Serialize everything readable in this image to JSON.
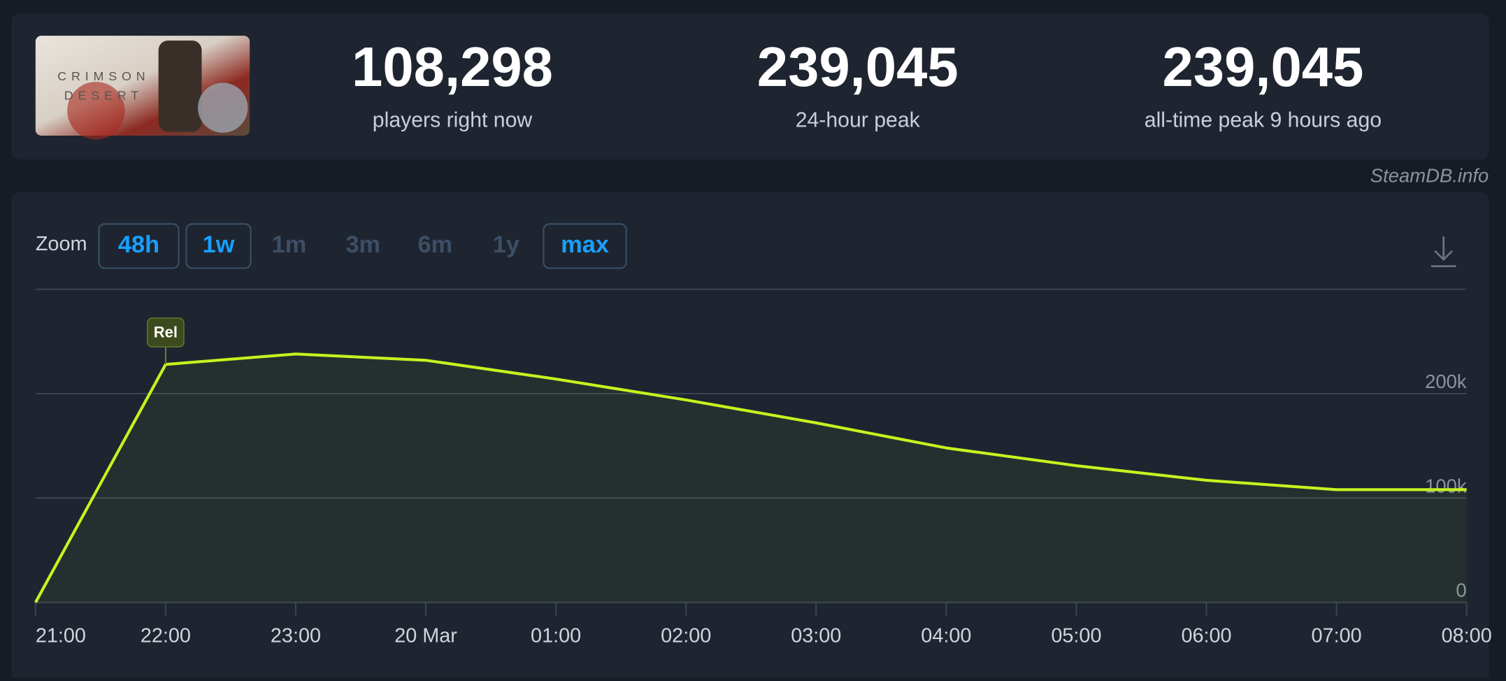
{
  "thumbnail": {
    "logo": [
      "CRIMSON",
      "DESERT"
    ]
  },
  "stats": [
    {
      "value": "108,298",
      "label": "players right now"
    },
    {
      "value": "239,045",
      "label": "24-hour peak"
    },
    {
      "value": "239,045",
      "label": "all-time peak 9 hours ago"
    }
  ],
  "watermark": "SteamDB.info",
  "zoom": {
    "label": "Zoom",
    "buttons": [
      {
        "label": "48h",
        "enabled": true
      },
      {
        "label": "1w",
        "enabled": true
      },
      {
        "label": "1m",
        "enabled": false
      },
      {
        "label": "3m",
        "enabled": false
      },
      {
        "label": "6m",
        "enabled": false
      },
      {
        "label": "1y",
        "enabled": false
      },
      {
        "label": "max",
        "enabled": true
      }
    ]
  },
  "chart_data": {
    "type": "line",
    "categories": [
      "21:00",
      "22:00",
      "23:00",
      "20 Mar",
      "01:00",
      "02:00",
      "03:00",
      "04:00",
      "05:00",
      "06:00",
      "07:00",
      "08:00"
    ],
    "values": [
      0,
      228000,
      238000,
      232000,
      214000,
      194000,
      172000,
      148000,
      131000,
      117000,
      108000,
      108000
    ],
    "color": "#c6f31f",
    "ylim": [
      0,
      300000
    ],
    "yticks": [
      0,
      {
        "value": 100000,
        "label": "100k"
      },
      {
        "value": 200000,
        "label": "200k"
      }
    ],
    "grid": true,
    "annotations": [
      {
        "category": "22:00",
        "label": "Rel"
      }
    ]
  }
}
